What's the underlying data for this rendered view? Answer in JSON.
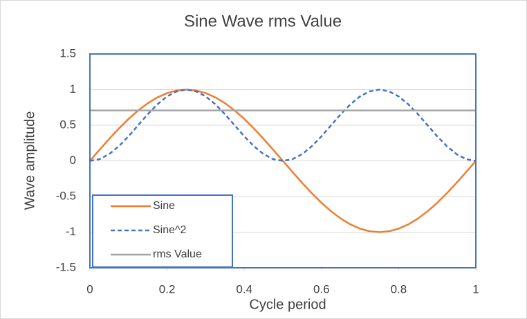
{
  "chart_data": {
    "type": "line",
    "title": "Sine Wave rms Value",
    "x_label": "Cycle period",
    "y_label": "Wave amplitude",
    "x": [
      0,
      0.025,
      0.05,
      0.075,
      0.1,
      0.125,
      0.15,
      0.175,
      0.2,
      0.225,
      0.25,
      0.275,
      0.3,
      0.325,
      0.35,
      0.375,
      0.4,
      0.425,
      0.45,
      0.475,
      0.5,
      0.525,
      0.55,
      0.575,
      0.6,
      0.625,
      0.65,
      0.675,
      0.7,
      0.725,
      0.75,
      0.775,
      0.8,
      0.825,
      0.85,
      0.875,
      0.9,
      0.925,
      0.95,
      0.975,
      1
    ],
    "series": [
      {
        "name": "Sine",
        "color": "#ed7d31",
        "dash": false,
        "values": [
          0,
          0.156,
          0.309,
          0.454,
          0.588,
          0.707,
          0.809,
          0.891,
          0.951,
          0.988,
          1,
          0.988,
          0.951,
          0.891,
          0.809,
          0.707,
          0.588,
          0.454,
          0.309,
          0.156,
          0,
          -0.156,
          -0.309,
          -0.454,
          -0.588,
          -0.707,
          -0.809,
          -0.891,
          -0.951,
          -0.988,
          -1,
          -0.988,
          -0.951,
          -0.891,
          -0.809,
          -0.707,
          -0.588,
          -0.454,
          -0.309,
          -0.156,
          0
        ]
      },
      {
        "name": "Sine^2",
        "color": "#4472c4",
        "dash": true,
        "values": [
          0,
          0.024,
          0.095,
          0.206,
          0.345,
          0.5,
          0.655,
          0.794,
          0.905,
          0.976,
          1,
          0.976,
          0.905,
          0.794,
          0.655,
          0.5,
          0.345,
          0.206,
          0.095,
          0.024,
          0,
          0.024,
          0.095,
          0.206,
          0.345,
          0.5,
          0.655,
          0.794,
          0.905,
          0.976,
          1,
          0.976,
          0.905,
          0.794,
          0.655,
          0.5,
          0.345,
          0.206,
          0.095,
          0.024,
          0
        ]
      },
      {
        "name": "rms Value",
        "color": "#a5a5a5",
        "dash": false,
        "values": [
          0.707,
          0.707,
          0.707,
          0.707,
          0.707,
          0.707,
          0.707,
          0.707,
          0.707,
          0.707,
          0.707,
          0.707,
          0.707,
          0.707,
          0.707,
          0.707,
          0.707,
          0.707,
          0.707,
          0.707,
          0.707,
          0.707,
          0.707,
          0.707,
          0.707,
          0.707,
          0.707,
          0.707,
          0.707,
          0.707,
          0.707,
          0.707,
          0.707,
          0.707,
          0.707,
          0.707,
          0.707,
          0.707,
          0.707,
          0.707,
          0.707
        ]
      }
    ],
    "xlim": [
      0,
      1
    ],
    "xticks": [
      0,
      0.2,
      0.4,
      0.6,
      0.8,
      1
    ],
    "ylim": [
      -1.5,
      1.5
    ],
    "yticks": [
      -1.5,
      -1,
      -0.5,
      0,
      0.5,
      1,
      1.5
    ],
    "grid": true,
    "legend": "lower left"
  }
}
